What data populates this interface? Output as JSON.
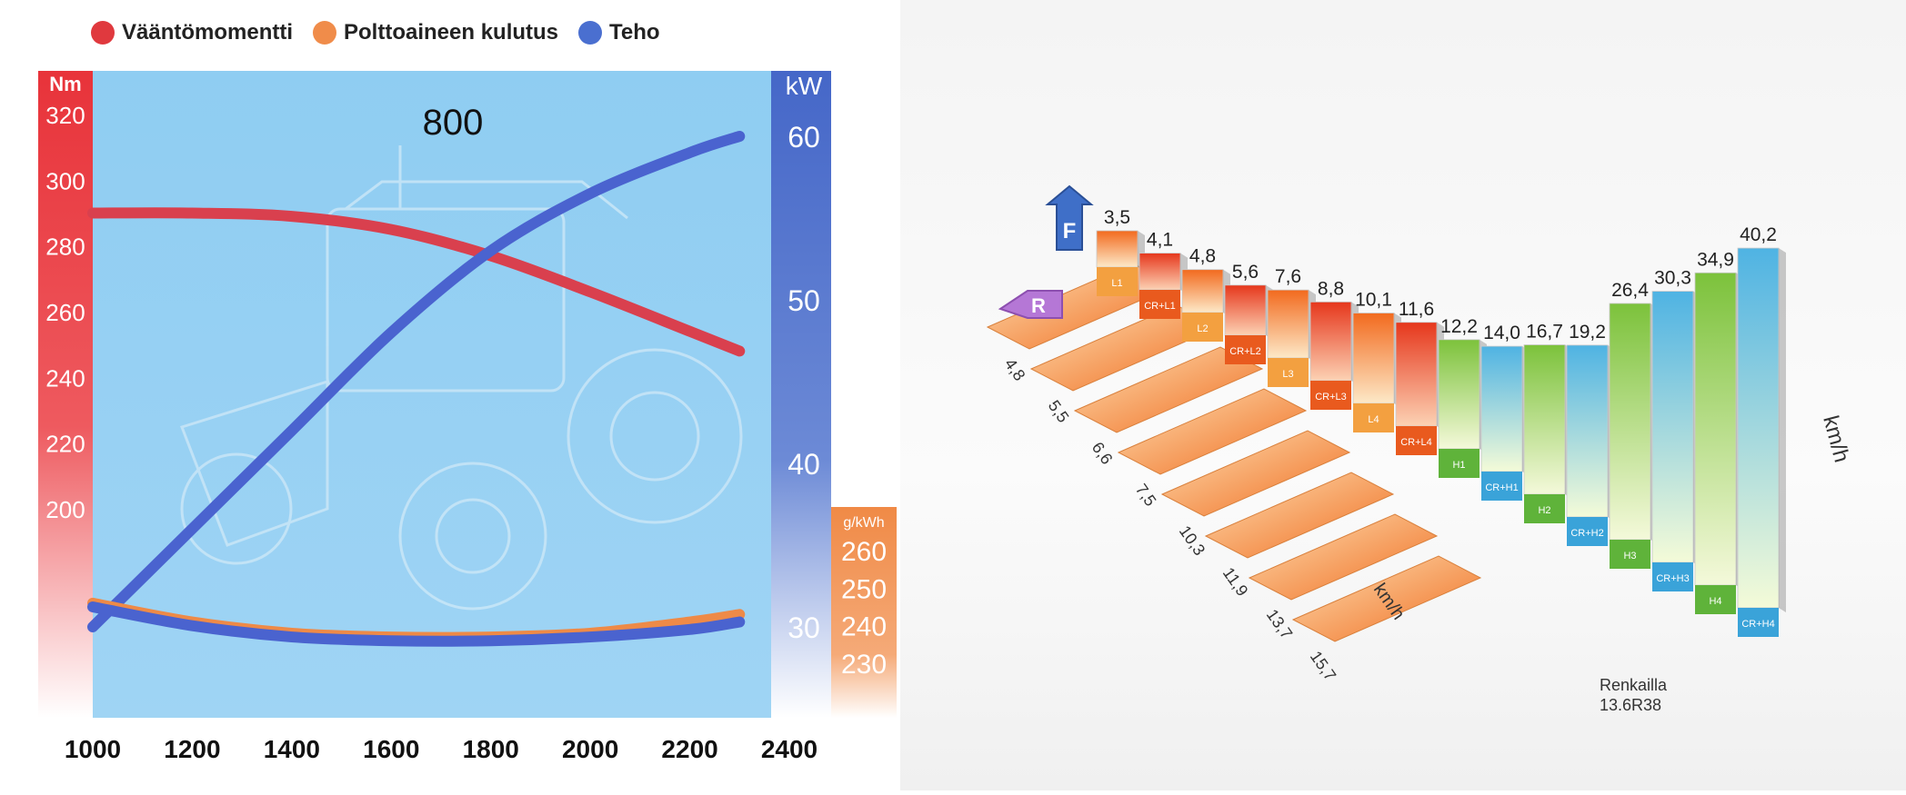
{
  "chart_data": [
    {
      "type": "line",
      "title": "800",
      "legend": [
        {
          "label": "Vääntömomentti",
          "color": "#e0393e"
        },
        {
          "label": "Polttoaineen kulutus",
          "color": "#f08c4a"
        },
        {
          "label": "Teho",
          "color": "#4a6fd0"
        }
      ],
      "x_ticks": [
        "1000",
        "1200",
        "1400",
        "1600",
        "1800",
        "2000",
        "2200",
        "2400"
      ],
      "torque_axis": {
        "unit": "Nm",
        "ticks": [
          "320",
          "300",
          "280",
          "260",
          "240",
          "220",
          "200"
        ],
        "ylim": [
          180,
          320
        ]
      },
      "power_axis": {
        "unit": "kW",
        "ticks": [
          "60",
          "50",
          "40",
          "30"
        ],
        "ylim": [
          25,
          62
        ]
      },
      "fuel_axis": {
        "unit": "g/kWh",
        "ticks": [
          "260",
          "250",
          "240",
          "230"
        ],
        "ylim": [
          225,
          268
        ]
      },
      "series": [
        {
          "name": "Vääntömomentti",
          "axis": "torque",
          "x": [
            1000,
            1200,
            1400,
            1600,
            1800,
            2000,
            2200,
            2300
          ],
          "y": [
            290,
            290,
            289,
            285,
            277,
            266,
            254,
            248
          ]
        },
        {
          "name": "Teho",
          "axis": "power",
          "x": [
            1000,
            1200,
            1400,
            1600,
            1800,
            2000,
            2200,
            2300
          ],
          "y": [
            30,
            36,
            42,
            48,
            53,
            56.5,
            59,
            60
          ]
        },
        {
          "name": "Polttoaineen kulutus",
          "axis": "fuel",
          "x": [
            1000,
            1200,
            1400,
            1600,
            1800,
            2000,
            2200,
            2300
          ],
          "y": [
            246,
            241,
            238,
            237,
            237,
            238,
            241,
            243
          ]
        },
        {
          "name": "",
          "axis": "fuel",
          "x": [
            1000,
            1200,
            1400,
            1600,
            1800,
            2000,
            2200,
            2300
          ],
          "y": [
            245,
            240,
            237,
            236,
            236,
            237,
            239,
            241
          ]
        }
      ]
    },
    {
      "type": "bar",
      "unit_label": "km/h",
      "forward_label": "F",
      "reverse_label": "R",
      "tire_note": [
        "Renkailla",
        "13.6R38"
      ],
      "forward_values": [
        "3,5",
        "4,1",
        "4,8",
        "5,6",
        "7,6",
        "8,8",
        "10,1",
        "11,6",
        "12,2",
        "14,0",
        "16,7",
        "19,2",
        "26,4",
        "30,3",
        "34,9",
        "40,2"
      ],
      "forward_numeric": [
        3.5,
        4.1,
        4.8,
        5.6,
        7.6,
        8.8,
        10.1,
        11.6,
        12.2,
        14.0,
        16.7,
        19.2,
        26.4,
        30.3,
        34.9,
        40.2
      ],
      "gear_labels": [
        "L1",
        "CR+L1",
        "L2",
        "CR+L2",
        "L3",
        "CR+L3",
        "L4",
        "CR+L4",
        "H1",
        "CR+H1",
        "H2",
        "CR+H2",
        "H3",
        "CR+H3",
        "H4",
        "CR+H4"
      ],
      "reverse_values": [
        "4,8",
        "5,5",
        "6,6",
        "7,5",
        "10,3",
        "11,9",
        "13,7",
        "15,7"
      ],
      "reverse_unit": "km/h"
    }
  ]
}
